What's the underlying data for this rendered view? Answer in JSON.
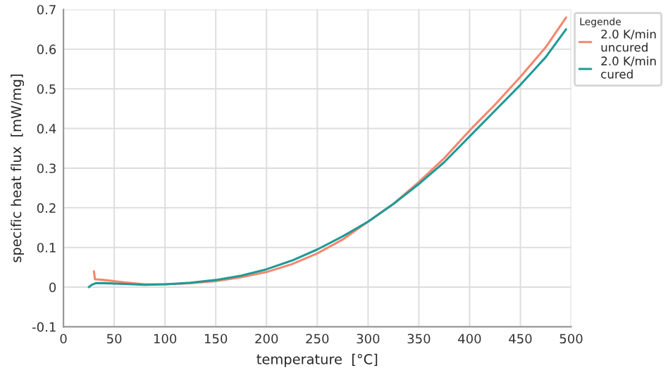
{
  "chart_data": {
    "type": "line",
    "xlabel": "temperature  [°C]",
    "ylabel": "specific heat flux  [mW/mg]",
    "legend_title": "Legende",
    "xlim": [
      0,
      500
    ],
    "xticks": [
      0,
      50,
      100,
      150,
      200,
      250,
      300,
      350,
      400,
      450,
      500
    ],
    "ylim": [
      -0.1,
      0.7
    ],
    "yticks": [
      -0.1,
      0,
      0.1,
      0.2,
      0.3,
      0.4,
      0.5,
      0.6,
      0.7
    ],
    "grid": true,
    "legend": "top right",
    "marker": "none",
    "line_style": "solid",
    "series": [
      {
        "name": "2.0 K/min\nuncured",
        "color": "#f4866e",
        "x": [
          30,
          31,
          40,
          60,
          80,
          100,
          125,
          150,
          175,
          200,
          225,
          250,
          275,
          300,
          325,
          350,
          375,
          400,
          425,
          450,
          475,
          495
        ],
        "values": [
          0.04,
          0.02,
          0.018,
          0.012,
          0.007,
          0.007,
          0.01,
          0.015,
          0.025,
          0.038,
          0.058,
          0.085,
          0.12,
          0.165,
          0.21,
          0.265,
          0.325,
          0.395,
          0.46,
          0.53,
          0.605,
          0.68
        ]
      },
      {
        "name": "2.0 K/min\ncured",
        "color": "#1f9a96",
        "x": [
          25,
          28,
          32,
          40,
          60,
          80,
          100,
          125,
          150,
          175,
          200,
          225,
          250,
          275,
          300,
          325,
          350,
          375,
          400,
          425,
          450,
          475,
          495
        ],
        "values": [
          0.0,
          0.006,
          0.01,
          0.01,
          0.008,
          0.006,
          0.007,
          0.011,
          0.018,
          0.029,
          0.045,
          0.067,
          0.095,
          0.128,
          0.165,
          0.21,
          0.26,
          0.315,
          0.38,
          0.445,
          0.51,
          0.58,
          0.65
        ]
      }
    ]
  }
}
